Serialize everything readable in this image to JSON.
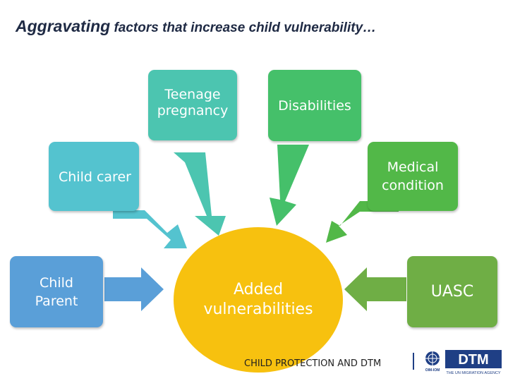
{
  "title": {
    "lead": "Aggravating",
    "rest": " factors that increase child vulnerability…"
  },
  "nodes": {
    "teenage_pregnancy": "Teenage\npregnancy",
    "disabilities": "Disabilities",
    "child_carer": "Child carer",
    "medical_condition": "Medical\ncondition",
    "child_parent": "Child\nParent",
    "uasc": "UASC",
    "center": "Added\nvulnerabilities"
  },
  "footer": "CHILD PROTECTION AND DTM",
  "logo": {
    "brand": "DTM",
    "org": "OIM-IOM",
    "tagline": "THE UN MIGRATION AGENCY"
  },
  "colors": {
    "teal": "#4cc5b0",
    "green": "#45c06a",
    "cyan": "#54c3cf",
    "lime": "#52b848",
    "blue": "#5a9fd8",
    "olive": "#6fae45",
    "center": "#f7c10f",
    "navy": "#1f3f85"
  }
}
